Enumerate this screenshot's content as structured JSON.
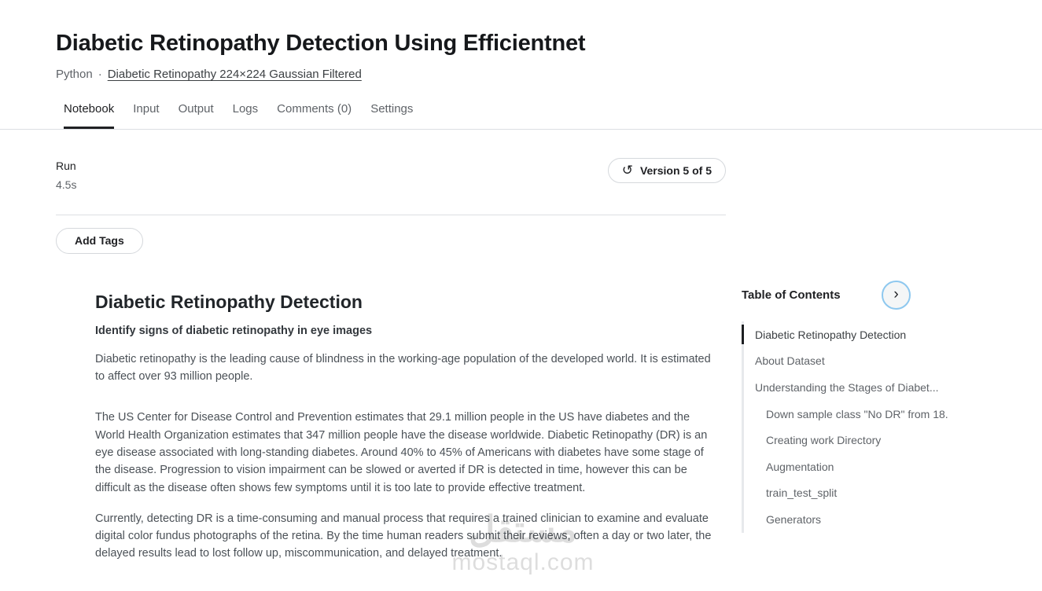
{
  "header": {
    "title": "Diabetic Retinopathy Detection Using Efficientnet",
    "language": "Python",
    "separator": "·",
    "dataset_link": "Diabetic Retinopathy 224×224 Gaussian Filtered"
  },
  "tabs": [
    {
      "label": "Notebook",
      "active": true
    },
    {
      "label": "Input",
      "active": false
    },
    {
      "label": "Output",
      "active": false
    },
    {
      "label": "Logs",
      "active": false
    },
    {
      "label": "Comments (0)",
      "active": false
    },
    {
      "label": "Settings",
      "active": false
    }
  ],
  "run_panel": {
    "run_label": "Run",
    "run_time": "4.5s",
    "version_button_label": "Version 5 of 5"
  },
  "tags": {
    "add_tags_label": "Add Tags"
  },
  "notebook": {
    "heading": "Diabetic Retinopathy Detection",
    "subheading": "Identify signs of diabetic retinopathy in eye images",
    "paragraphs": [
      "Diabetic retinopathy is the leading cause of blindness in the working-age population of the developed world. It is estimated to affect over 93 million people.",
      "The US Center for Disease Control and Prevention estimates that 29.1 million people in the US have diabetes and the World Health Organization estimates that 347 million people have the disease worldwide. Diabetic Retinopathy (DR) is an eye disease associated with long-standing diabetes. Around 40% to 45% of Americans with diabetes have some stage of the disease. Progression to vision impairment can be slowed or averted if DR is detected in time, however this can be difficult as the disease often shows few symptoms until it is too late to provide effective treatment.",
      "Currently, detecting DR is a time-consuming and manual process that requires a trained clinician to examine and evaluate digital color fundus photographs of the retina. By the time human readers submit their reviews, often a day or two later, the delayed results lead to lost follow up, miscommunication, and delayed treatment."
    ]
  },
  "toc": {
    "title": "Table of Contents",
    "items": [
      {
        "label": "Diabetic Retinopathy Detection",
        "level": 0,
        "active": true
      },
      {
        "label": "About Dataset",
        "level": 0,
        "active": false
      },
      {
        "label": "Understanding the Stages of Diabet...",
        "level": 0,
        "active": false
      },
      {
        "label": "Down sample class \"No DR\" from 18.",
        "level": 1,
        "active": false
      },
      {
        "label": "Creating work Directory",
        "level": 1,
        "active": false
      },
      {
        "label": "Augmentation",
        "level": 1,
        "active": false
      },
      {
        "label": "train_test_split",
        "level": 1,
        "active": false
      },
      {
        "label": "Generators",
        "level": 1,
        "active": false
      }
    ]
  },
  "icons": {
    "history": "↺",
    "chevron_right": "›"
  },
  "watermark": {
    "arabic": "مستقل",
    "domain": "mostaql.com"
  },
  "colors": {
    "text_primary": "#202124",
    "text_secondary": "#5f6368",
    "divider": "#dcdfe3",
    "tab_active_underline": "#202124",
    "toc_active_bar": "#1d1f22",
    "toc_ring_blue": "#8ec8ef"
  }
}
